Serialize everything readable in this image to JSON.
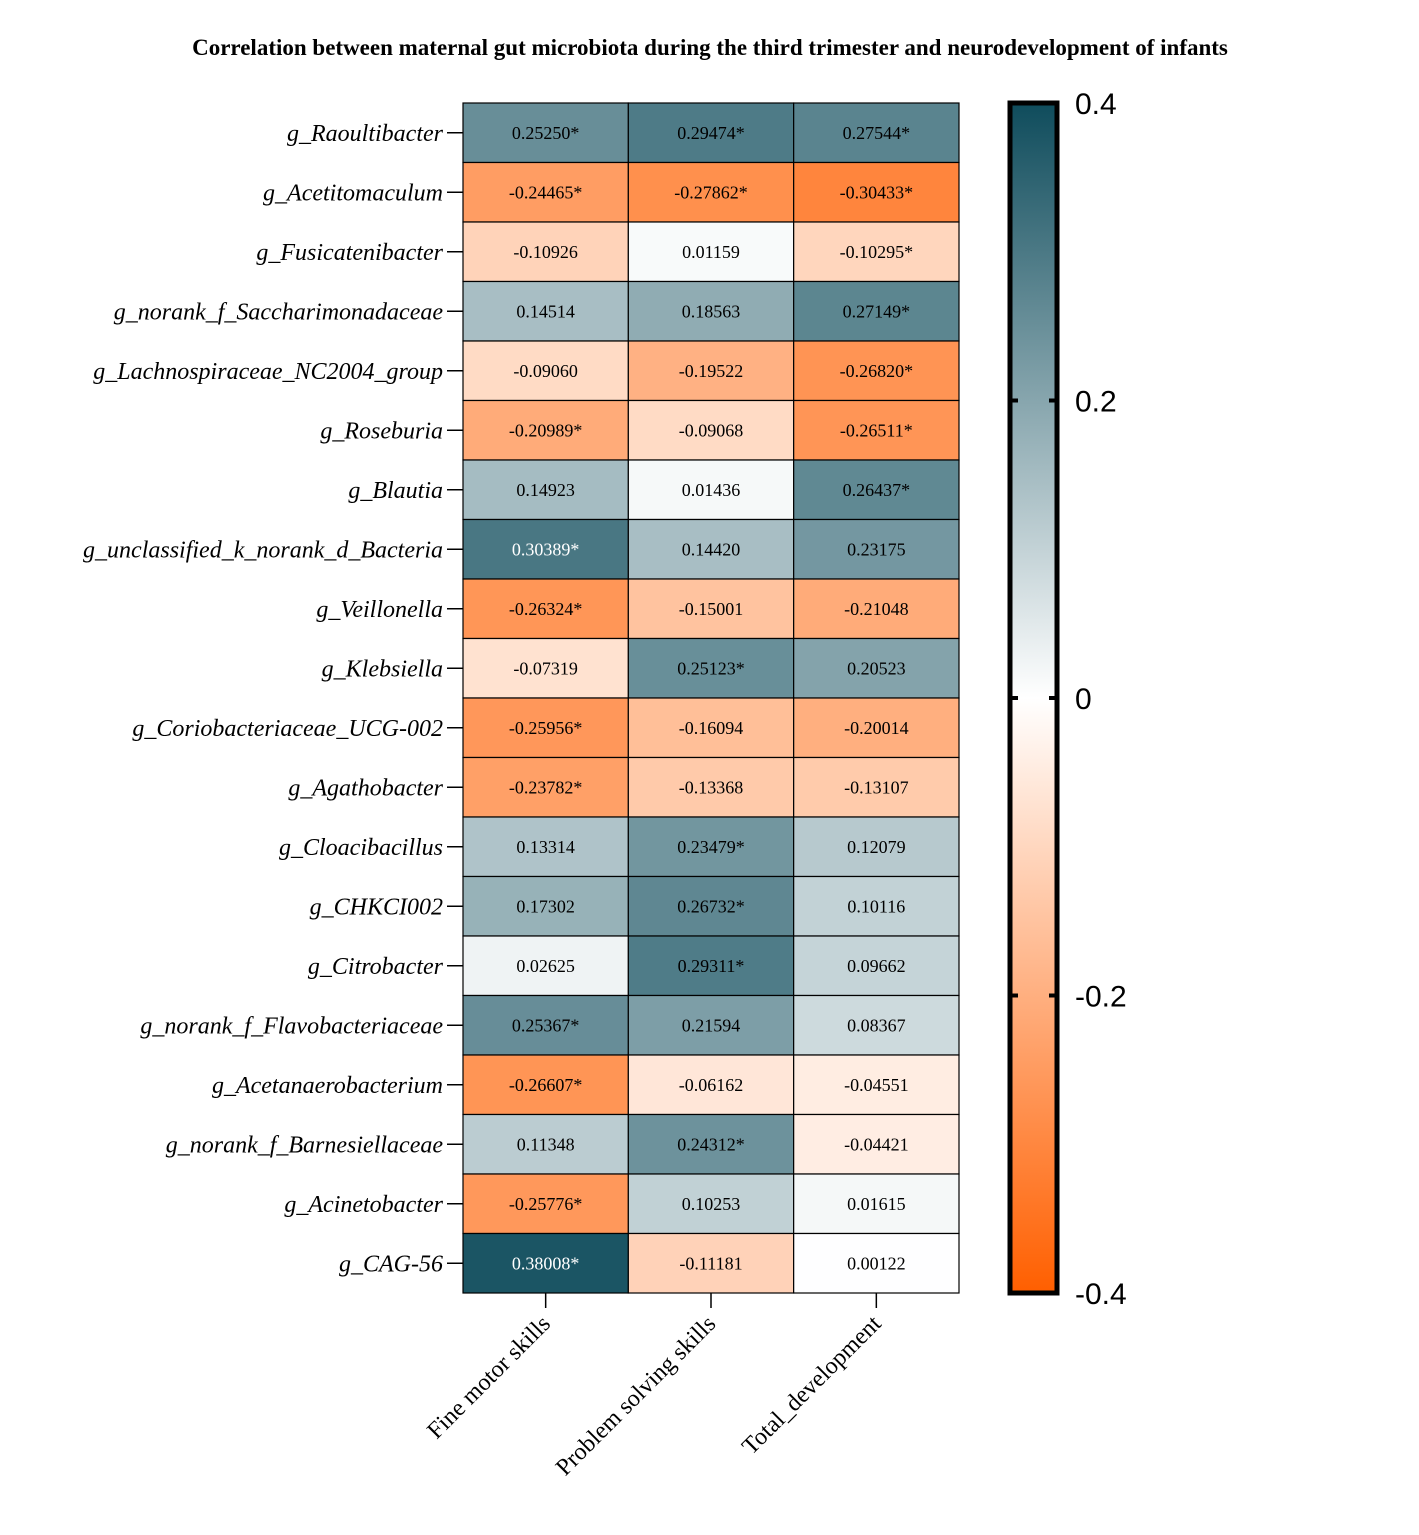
{
  "chart_data": {
    "type": "heatmap",
    "title": "Correlation between maternal gut microbiota during the third trimester and neurodevelopment of infants",
    "xlabel": "",
    "ylabel": "",
    "columns": [
      "Fine motor skills",
      "Problem solving skills",
      "Total_development"
    ],
    "rows": [
      "g_Raoultibacter",
      "g_Acetitomaculum",
      "g_Fusicatenibacter",
      "g_norank_f_Saccharimonadaceae",
      "g_Lachnospiraceae_NC2004_group",
      "g_Roseburia",
      "g_Blautia",
      "g_unclassified_k_norank_d_Bacteria",
      "g_Veillonella",
      "g_Klebsiella",
      "g_Coriobacteriaceae_UCG-002",
      "g_Agathobacter",
      "g_Cloacibacillus",
      "g_CHKCI002",
      "g_Citrobacter",
      "g_norank_f_Flavobacteriaceae",
      "g_Acetanaerobacterium",
      "g_norank_f_Barnesiellaceae",
      "g_Acinetobacter",
      "g_CAG-56"
    ],
    "values": [
      [
        0.2525,
        0.29474,
        0.27544
      ],
      [
        -0.24465,
        -0.27862,
        -0.30433
      ],
      [
        -0.10926,
        0.01159,
        -0.10295
      ],
      [
        0.14514,
        0.18563,
        0.27149
      ],
      [
        -0.0906,
        -0.19522,
        -0.2682
      ],
      [
        -0.20989,
        -0.09068,
        -0.26511
      ],
      [
        0.14923,
        0.01436,
        0.26437
      ],
      [
        0.30389,
        0.1442,
        0.23175
      ],
      [
        -0.26324,
        -0.15001,
        -0.21048
      ],
      [
        -0.07319,
        0.25123,
        0.20523
      ],
      [
        -0.25956,
        -0.16094,
        -0.20014
      ],
      [
        -0.23782,
        -0.13368,
        -0.13107
      ],
      [
        0.13314,
        0.23479,
        0.12079
      ],
      [
        0.17302,
        0.26732,
        0.10116
      ],
      [
        0.02625,
        0.29311,
        0.09662
      ],
      [
        0.25367,
        0.21594,
        0.08367
      ],
      [
        -0.26607,
        -0.06162,
        -0.04551
      ],
      [
        0.11348,
        0.24312,
        -0.04421
      ],
      [
        -0.25776,
        0.10253,
        0.01615
      ],
      [
        0.38008,
        -0.11181,
        0.00122
      ]
    ],
    "labels": [
      [
        "0.25250*",
        "0.29474*",
        "0.27544*"
      ],
      [
        "-0.24465*",
        "-0.27862*",
        "-0.30433*"
      ],
      [
        "-0.10926",
        "0.01159",
        "-0.10295*"
      ],
      [
        "0.14514",
        "0.18563",
        "0.27149*"
      ],
      [
        "-0.09060",
        "-0.19522",
        "-0.26820*"
      ],
      [
        "-0.20989*",
        "-0.09068",
        "-0.26511*"
      ],
      [
        "0.14923",
        "0.01436",
        "0.26437*"
      ],
      [
        "0.30389*",
        "0.14420",
        "0.23175"
      ],
      [
        "-0.26324*",
        "-0.15001",
        "-0.21048"
      ],
      [
        "-0.07319",
        "0.25123*",
        "0.20523"
      ],
      [
        "-0.25956*",
        "-0.16094",
        "-0.20014"
      ],
      [
        "-0.23782*",
        "-0.13368",
        "-0.13107"
      ],
      [
        "0.13314",
        "0.23479*",
        "0.12079"
      ],
      [
        "0.17302",
        "0.26732*",
        "0.10116"
      ],
      [
        "0.02625",
        "0.29311*",
        "0.09662"
      ],
      [
        "0.25367*",
        "0.21594",
        "0.08367"
      ],
      [
        "-0.26607*",
        "-0.06162",
        "-0.04551"
      ],
      [
        "0.11348",
        "0.24312*",
        "-0.04421"
      ],
      [
        "-0.25776*",
        "0.10253",
        "0.01615"
      ],
      [
        "0.38008*",
        "-0.11181",
        "0.00122"
      ]
    ],
    "significance_marker": "*",
    "colorbar": {
      "range": [
        -0.4,
        0.4
      ],
      "ticks": [
        0.4,
        0.2,
        0,
        -0.2,
        -0.4
      ],
      "tick_labels": [
        "0.4",
        "0.2",
        "0",
        "-0.2",
        "-0.4"
      ],
      "color_max": "#0f4c5c",
      "color_mid": "#ffffff",
      "color_min": "#ff5f00",
      "placement": "right"
    },
    "legend": "colorbar-right"
  }
}
